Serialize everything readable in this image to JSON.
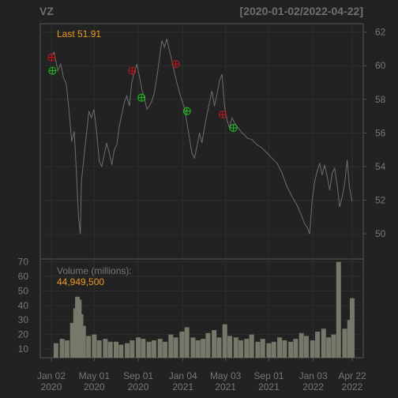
{
  "header": {
    "symbol": "VZ",
    "date_range": "[2020-01-02/2022-04-22]"
  },
  "price_panel": {
    "last_label": "Last 51.91"
  },
  "volume_panel": {
    "title": "Volume (millions):",
    "value": "44,949,500"
  },
  "colors": {
    "background": "#222222",
    "frame": "#555555",
    "grid": "#2d2d2d",
    "axis_text": "#777777",
    "price_line": "#6e6e6e",
    "volume_bars": "#77776a",
    "accent_orange": "#f09a19",
    "sell_marker": "#c0171d",
    "buy_marker": "#20c21e"
  },
  "chart_data": [
    {
      "type": "line",
      "name": "price",
      "x_ticks": [
        {
          "top": "Jan 02",
          "bottom": "2020"
        },
        {
          "top": "May 01",
          "bottom": "2020"
        },
        {
          "top": "Sep 01",
          "bottom": "2020"
        },
        {
          "top": "Jan 04",
          "bottom": "2021"
        },
        {
          "top": "May 03",
          "bottom": "2021"
        },
        {
          "top": "Sep 01",
          "bottom": "2021"
        },
        {
          "top": "Jan 03",
          "bottom": "2022"
        },
        {
          "top": "Apr 22",
          "bottom": "2022"
        }
      ],
      "tick_dates": [
        "2020-01-02",
        "2020-05-01",
        "2020-09-01",
        "2021-01-04",
        "2021-05-03",
        "2021-09-01",
        "2022-01-03",
        "2022-04-22"
      ],
      "ylim": [
        48.5,
        62.5
      ],
      "y_ticks": [
        50,
        52,
        54,
        56,
        58,
        60,
        62
      ],
      "grid": true,
      "series": [
        {
          "dates": [
            "2020-01-02",
            "2020-01-10",
            "2020-01-20",
            "2020-01-28",
            "2020-02-05",
            "2020-02-13",
            "2020-02-21",
            "2020-02-28",
            "2020-03-06",
            "2020-03-12",
            "2020-03-18",
            "2020-03-23",
            "2020-03-26",
            "2020-04-02",
            "2020-04-09",
            "2020-04-16",
            "2020-04-23",
            "2020-04-30",
            "2020-05-07",
            "2020-05-15",
            "2020-05-22",
            "2020-05-29",
            "2020-06-05",
            "2020-06-12",
            "2020-06-19",
            "2020-06-26",
            "2020-07-03",
            "2020-07-10",
            "2020-07-17",
            "2020-07-24",
            "2020-07-31",
            "2020-08-07",
            "2020-08-14",
            "2020-08-21",
            "2020-08-28",
            "2020-09-04",
            "2020-09-11",
            "2020-09-18",
            "2020-09-25",
            "2020-10-02",
            "2020-10-09",
            "2020-10-16",
            "2020-10-23",
            "2020-10-30",
            "2020-11-06",
            "2020-11-13",
            "2020-11-20",
            "2020-11-27",
            "2020-12-04",
            "2020-12-11",
            "2020-12-18",
            "2020-12-28",
            "2021-01-08",
            "2021-01-15",
            "2021-01-22",
            "2021-01-29",
            "2021-02-05",
            "2021-02-12",
            "2021-02-19",
            "2021-02-26",
            "2021-03-05",
            "2021-03-12",
            "2021-03-19",
            "2021-03-26",
            "2021-04-02",
            "2021-04-09",
            "2021-04-16",
            "2021-04-23",
            "2021-04-30",
            "2021-05-07",
            "2021-05-14",
            "2021-05-21",
            "2021-05-28",
            "2021-06-04",
            "2021-06-11",
            "2021-06-18",
            "2021-06-25",
            "2021-07-02",
            "2021-07-16",
            "2021-07-30",
            "2021-08-13",
            "2021-08-27",
            "2021-09-10",
            "2021-09-24",
            "2021-10-08",
            "2021-10-22",
            "2021-11-05",
            "2021-11-19",
            "2021-12-03",
            "2021-12-10",
            "2021-12-17",
            "2021-12-24",
            "2021-12-31",
            "2022-01-07",
            "2022-01-14",
            "2022-01-21",
            "2022-01-28",
            "2022-02-04",
            "2022-02-11",
            "2022-02-18",
            "2022-02-25",
            "2022-03-04",
            "2022-03-11",
            "2022-03-18",
            "2022-03-25",
            "2022-04-01",
            "2022-04-08",
            "2022-04-14",
            "2022-04-22"
          ],
          "values": [
            60.6,
            60.8,
            59.7,
            60.1,
            59.3,
            58.9,
            57.2,
            55.5,
            56.1,
            53.7,
            51.0,
            50.0,
            53.1,
            54.5,
            55.9,
            57.3,
            56.9,
            57.4,
            56.2,
            54.3,
            54.0,
            54.7,
            55.4,
            54.8,
            54.1,
            55.0,
            55.3,
            56.4,
            57.1,
            57.8,
            58.2,
            57.6,
            59.0,
            59.6,
            60.1,
            59.4,
            58.6,
            58.1,
            57.4,
            57.6,
            57.9,
            58.4,
            59.3,
            60.4,
            61.5,
            61.1,
            61.6,
            60.9,
            60.3,
            59.6,
            59.0,
            58.2,
            57.5,
            56.6,
            55.7,
            54.8,
            54.5,
            55.2,
            56.0,
            55.4,
            56.3,
            57.1,
            57.8,
            58.5,
            57.6,
            58.3,
            59.1,
            59.5,
            57.6,
            56.8,
            56.3,
            56.9,
            56.6,
            56.4,
            56.2,
            56.0,
            55.9,
            55.7,
            55.6,
            55.3,
            55.1,
            54.8,
            54.5,
            54.2,
            53.6,
            52.8,
            52.2,
            51.7,
            51.0,
            50.6,
            50.4,
            50.0,
            52.0,
            53.1,
            53.7,
            54.2,
            53.5,
            54.1,
            53.4,
            52.6,
            53.6,
            53.9,
            52.9,
            51.6,
            52.2,
            53.0,
            54.4,
            52.8,
            51.91
          ]
        }
      ],
      "markers": [
        {
          "kind": "sell",
          "date": "2020-01-03",
          "value": 60.5
        },
        {
          "kind": "buy",
          "date": "2020-01-05",
          "value": 59.7
        },
        {
          "kind": "sell",
          "date": "2020-08-15",
          "value": 59.7
        },
        {
          "kind": "buy",
          "date": "2020-09-10",
          "value": 58.1
        },
        {
          "kind": "sell",
          "date": "2020-12-15",
          "value": 60.1
        },
        {
          "kind": "buy",
          "date": "2021-01-15",
          "value": 57.3
        },
        {
          "kind": "sell",
          "date": "2021-04-25",
          "value": 57.1
        },
        {
          "kind": "buy",
          "date": "2021-05-25",
          "value": 56.3
        }
      ]
    },
    {
      "type": "bar",
      "name": "volume",
      "ylim": [
        4,
        72
      ],
      "y_ticks": [
        10,
        20,
        30,
        40,
        50,
        60,
        70
      ],
      "grid": true,
      "dates": [
        "2020-01-15",
        "2020-02-01",
        "2020-02-15",
        "2020-03-01",
        "2020-03-10",
        "2020-03-15",
        "2020-03-20",
        "2020-03-25",
        "2020-04-01",
        "2020-04-15",
        "2020-05-01",
        "2020-05-15",
        "2020-06-01",
        "2020-06-15",
        "2020-07-01",
        "2020-07-15",
        "2020-08-01",
        "2020-08-15",
        "2020-09-01",
        "2020-09-15",
        "2020-10-01",
        "2020-10-15",
        "2020-11-01",
        "2020-11-15",
        "2020-12-01",
        "2020-12-15",
        "2021-01-01",
        "2021-01-15",
        "2021-02-01",
        "2021-02-15",
        "2021-03-01",
        "2021-03-15",
        "2021-04-01",
        "2021-04-15",
        "2021-05-01",
        "2021-05-15",
        "2021-06-01",
        "2021-06-15",
        "2021-07-01",
        "2021-07-15",
        "2021-08-01",
        "2021-08-15",
        "2021-09-01",
        "2021-09-15",
        "2021-10-01",
        "2021-10-15",
        "2021-11-01",
        "2021-11-15",
        "2021-12-01",
        "2021-12-15",
        "2022-01-01",
        "2022-01-15",
        "2022-02-01",
        "2022-02-15",
        "2022-03-01",
        "2022-03-15",
        "2022-04-01",
        "2022-04-15",
        "2022-04-22"
      ],
      "values": [
        14,
        17,
        16,
        28,
        38,
        46,
        44,
        34,
        26,
        19,
        20,
        16,
        17,
        15,
        15,
        13,
        14,
        16,
        18,
        17,
        15,
        16,
        17,
        15,
        20,
        18,
        22,
        25,
        18,
        16,
        17,
        21,
        23,
        18,
        27,
        19,
        18,
        16,
        17,
        20,
        15,
        17,
        14,
        15,
        18,
        16,
        15,
        17,
        21,
        19,
        16,
        22,
        24,
        18,
        20,
        70,
        24,
        30,
        45
      ]
    }
  ]
}
